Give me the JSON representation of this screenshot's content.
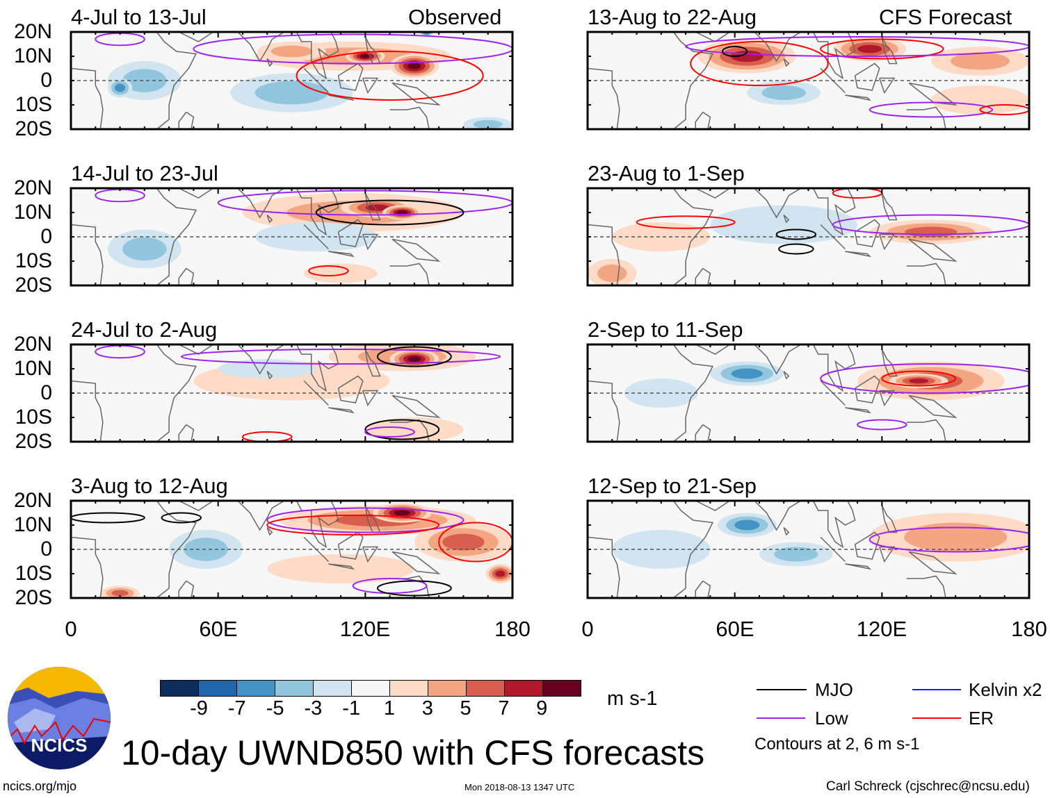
{
  "title": "10-day UWND850 with CFS forecasts",
  "footer": {
    "left": "ncics.org/mjo",
    "center": "Mon 2018-08-13 1347 UTC",
    "right": "Carl Schreck (cjschrec@ncsu.edu)"
  },
  "logo": {
    "text": "NCICS"
  },
  "colorbar": {
    "units": "m s-1",
    "ticks": [
      "-9",
      "-7",
      "-5",
      "-3",
      "-1",
      "1",
      "3",
      "5",
      "7",
      "9"
    ],
    "colors": [
      "#0d2d5c",
      "#2166ac",
      "#4393c3",
      "#92c5de",
      "#d1e5f0",
      "#f7f7f7",
      "#fddbc7",
      "#f4a582",
      "#d6604d",
      "#b2182b",
      "#67001f"
    ]
  },
  "legend": {
    "items": [
      {
        "label": "MJO",
        "color": "#000000"
      },
      {
        "label": "Kelvin x2",
        "color": "#1a1aff"
      },
      {
        "label": "Low",
        "color": "#a020f0"
      },
      {
        "label": "ER",
        "color": "#ff0000"
      }
    ],
    "note": "Contours at 2, 6 m s-1"
  },
  "chart_data": {
    "type": "heatmap",
    "variable": "850-hPa zonal wind anomaly",
    "lat_labels": [
      "20N",
      "10N",
      "0",
      "10S",
      "20S"
    ],
    "lon_labels": [
      "0",
      "60E",
      "120E",
      "180"
    ],
    "lon_range": [
      0,
      180
    ],
    "lat_range": [
      -20,
      20
    ],
    "column_labels": {
      "left": "Observed",
      "right": "CFS Forecast"
    },
    "panels": [
      {
        "title": "4-Jul to 13-Jul",
        "column": "left",
        "blobs": [
          [
            115,
            10,
            40,
            6,
            2
          ],
          [
            120,
            10,
            8,
            3,
            5
          ],
          [
            140,
            6,
            10,
            5,
            5
          ],
          [
            90,
            12,
            14,
            4,
            2
          ],
          [
            30,
            0,
            15,
            8,
            -2
          ],
          [
            20,
            -3,
            5,
            4,
            -3
          ],
          [
            90,
            -5,
            25,
            8,
            -2
          ],
          [
            170,
            -18,
            10,
            3,
            -2
          ],
          [
            145,
            20,
            3,
            2,
            -4
          ]
        ],
        "contours": [
          [
            "low",
            20,
            17,
            10,
            2.5
          ],
          [
            "low",
            115,
            13,
            65,
            6
          ],
          [
            "er",
            130,
            2,
            38,
            10
          ]
        ]
      },
      {
        "title": "14-Jul to 23-Jul",
        "column": "left",
        "blobs": [
          [
            115,
            10,
            45,
            8,
            2
          ],
          [
            125,
            12,
            15,
            4,
            4
          ],
          [
            135,
            10,
            8,
            3,
            5
          ],
          [
            30,
            -5,
            15,
            8,
            -2
          ],
          [
            110,
            -15,
            15,
            4,
            1
          ],
          [
            100,
            0,
            25,
            6,
            -1
          ]
        ],
        "contours": [
          [
            "low",
            20,
            17,
            10,
            2.5
          ],
          [
            "low",
            120,
            14,
            60,
            5
          ],
          [
            "mjo",
            130,
            10,
            30,
            5
          ],
          [
            "er",
            105,
            -14,
            8,
            2
          ]
        ]
      },
      {
        "title": "24-Jul to 2-Aug",
        "column": "left",
        "blobs": [
          [
            135,
            15,
            30,
            6,
            2
          ],
          [
            140,
            14,
            10,
            4,
            5
          ],
          [
            90,
            5,
            40,
            8,
            1
          ],
          [
            80,
            10,
            20,
            4,
            -1
          ],
          [
            140,
            -15,
            20,
            5,
            1
          ]
        ],
        "contours": [
          [
            "low",
            20,
            17,
            10,
            2.5
          ],
          [
            "low",
            110,
            15,
            65,
            3
          ],
          [
            "mjo",
            140,
            15,
            15,
            4
          ],
          [
            "mjo",
            135,
            -15,
            15,
            4
          ],
          [
            "low",
            130,
            -16,
            10,
            2
          ],
          [
            "er",
            80,
            -18,
            10,
            2
          ]
        ]
      },
      {
        "title": "3-Aug to 12-Aug",
        "column": "left",
        "blobs": [
          [
            125,
            12,
            40,
            6,
            3
          ],
          [
            135,
            15,
            12,
            4,
            5
          ],
          [
            160,
            3,
            20,
            8,
            3
          ],
          [
            175,
            -10,
            6,
            4,
            4
          ],
          [
            55,
            0,
            15,
            8,
            -2
          ],
          [
            20,
            -18,
            8,
            3,
            3
          ],
          [
            110,
            -8,
            30,
            6,
            1
          ]
        ],
        "contours": [
          [
            "mjo",
            15,
            13,
            15,
            2
          ],
          [
            "mjo",
            45,
            13,
            8,
            2
          ],
          [
            "low",
            120,
            12,
            40,
            5
          ],
          [
            "er",
            115,
            10,
            35,
            4
          ],
          [
            "er",
            165,
            3,
            15,
            8
          ],
          [
            "low",
            130,
            -15,
            15,
            3
          ],
          [
            "mjo",
            140,
            -16,
            15,
            3
          ]
        ]
      },
      {
        "title": "13-Aug to 22-Aug",
        "column": "right",
        "blobs": [
          [
            65,
            10,
            20,
            7,
            4
          ],
          [
            115,
            13,
            15,
            5,
            4
          ],
          [
            160,
            8,
            20,
            6,
            2
          ],
          [
            80,
            -5,
            15,
            5,
            -2
          ],
          [
            160,
            -8,
            20,
            6,
            1
          ]
        ],
        "contours": [
          [
            "er",
            70,
            7,
            28,
            9
          ],
          [
            "er",
            120,
            13,
            25,
            4
          ],
          [
            "low",
            110,
            14,
            70,
            4
          ],
          [
            "mjo",
            60,
            12,
            5,
            2
          ],
          [
            "low",
            140,
            -12,
            25,
            3
          ],
          [
            "er",
            170,
            -12,
            10,
            2
          ]
        ]
      },
      {
        "title": "23-Aug to 1-Sep",
        "column": "right",
        "blobs": [
          [
            140,
            2,
            25,
            5,
            3
          ],
          [
            30,
            0,
            20,
            6,
            1
          ],
          [
            80,
            5,
            30,
            8,
            -1
          ],
          [
            10,
            -15,
            10,
            6,
            2
          ]
        ],
        "contours": [
          [
            "er",
            40,
            6,
            20,
            2.5
          ],
          [
            "mjo",
            85,
            1,
            8,
            2
          ],
          [
            "mjo",
            85,
            -5,
            7,
            2
          ],
          [
            "low",
            140,
            5,
            40,
            4
          ],
          [
            "er",
            110,
            18,
            10,
            2
          ]
        ]
      },
      {
        "title": "2-Sep to 11-Sep",
        "column": "right",
        "blobs": [
          [
            65,
            8,
            15,
            5,
            -3
          ],
          [
            140,
            5,
            30,
            8,
            3
          ],
          [
            135,
            5,
            12,
            3,
            4
          ],
          [
            30,
            0,
            15,
            6,
            -1
          ]
        ],
        "contours": [
          [
            "low",
            140,
            6,
            45,
            6
          ],
          [
            "er",
            135,
            6,
            15,
            3
          ],
          [
            "low",
            120,
            -13,
            10,
            2
          ]
        ]
      },
      {
        "title": "12-Sep to 21-Sep",
        "column": "right",
        "blobs": [
          [
            65,
            10,
            12,
            5,
            -3
          ],
          [
            150,
            5,
            35,
            10,
            2
          ],
          [
            85,
            -2,
            15,
            5,
            -2
          ],
          [
            30,
            0,
            20,
            8,
            -1
          ]
        ],
        "contours": [
          [
            "low",
            150,
            4,
            35,
            5
          ]
        ]
      }
    ]
  }
}
